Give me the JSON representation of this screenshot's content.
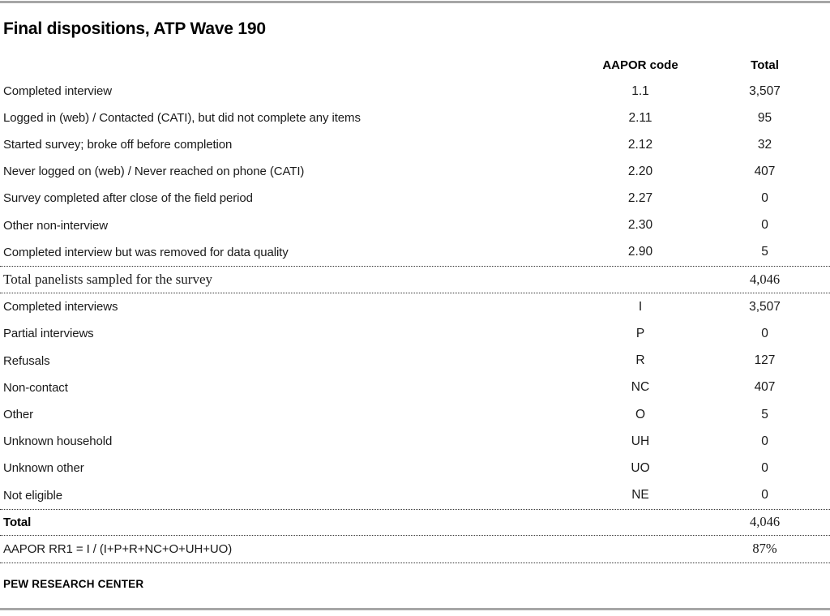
{
  "title": "Final dispositions, ATP Wave 190",
  "table": {
    "columns": {
      "code": "AAPOR code",
      "total": "Total"
    },
    "section1": [
      {
        "label": "Completed interview",
        "code": "1.1",
        "total": "3,507"
      },
      {
        "label": "Logged in (web) / Contacted (CATI), but did not complete any items",
        "code": "2.11",
        "total": "95"
      },
      {
        "label": "Started survey; broke off before completion",
        "code": "2.12",
        "total": "32"
      },
      {
        "label": "Never logged on (web) / Never reached on phone (CATI)",
        "code": "2.20",
        "total": "407"
      },
      {
        "label": "Survey completed after close of the field period",
        "code": "2.27",
        "total": "0"
      },
      {
        "label": "Other non-interview",
        "code": "2.30",
        "total": "0"
      },
      {
        "label": "Completed interview but was removed for data quality",
        "code": "2.90",
        "total": "5"
      }
    ],
    "summary1": {
      "label": "Total panelists sampled for the survey",
      "code": "",
      "total": "4,046"
    },
    "section2": [
      {
        "label": "Completed interviews",
        "code": "I",
        "total": "3,507"
      },
      {
        "label": "Partial interviews",
        "code": "P",
        "total": "0"
      },
      {
        "label": "Refusals",
        "code": "R",
        "total": "127"
      },
      {
        "label": "Non-contact",
        "code": "NC",
        "total": "407"
      },
      {
        "label": "Other",
        "code": "O",
        "total": "5"
      },
      {
        "label": "Unknown household",
        "code": "UH",
        "total": "0"
      },
      {
        "label": "Unknown other",
        "code": "UO",
        "total": "0"
      },
      {
        "label": "Not eligible",
        "code": "NE",
        "total": "0"
      }
    ],
    "total_row": {
      "label": "Total",
      "code": "",
      "total": "4,046"
    },
    "rr1_row": {
      "label": "AAPOR RR1 = I / (I+P+R+NC+O+UH+UO)",
      "code": "",
      "total": "87%"
    }
  },
  "footer": {
    "source": "PEW RESEARCH CENTER"
  }
}
